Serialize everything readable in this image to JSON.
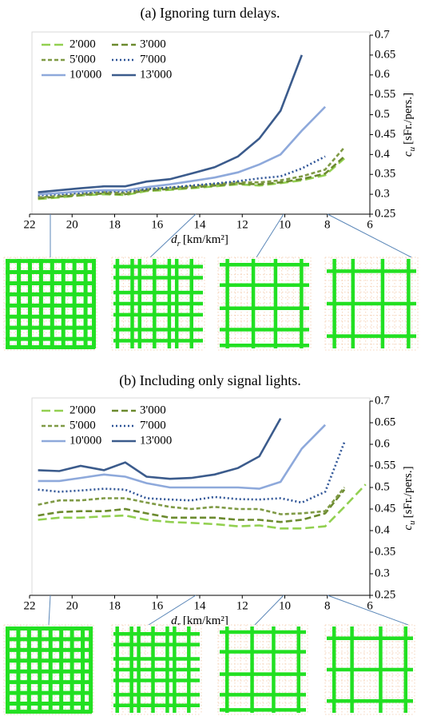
{
  "chart_data": [
    {
      "type": "line",
      "title": "(a) Ignoring turn delays.",
      "xlabel_symbol": "d",
      "xlabel_sub": "r",
      "xlabel_unit": "[km/km²]",
      "ylabel_symbol": "c",
      "ylabel_sub": "u",
      "ylabel_unit": "[sFr./pers.]",
      "xlim": [
        22,
        6
      ],
      "xticks": [
        22,
        20,
        18,
        16,
        14,
        12,
        10,
        8,
        6
      ],
      "ylim": [
        0.25,
        0.7
      ],
      "yticks": [
        0.25,
        0.3,
        0.35,
        0.4,
        0.45,
        0.5,
        0.55,
        0.6,
        0.65,
        0.7
      ],
      "x": [
        21.6,
        20.6,
        19.6,
        18.5,
        17.5,
        16.5,
        15.4,
        14.4,
        13.3,
        12.2,
        11.2,
        10.2,
        9.2,
        8.1,
        7.2
      ],
      "series": [
        {
          "name": "2'000",
          "color": "#92d050",
          "style": "longdash",
          "values": [
            0.288,
            0.292,
            0.297,
            0.3,
            0.298,
            0.308,
            0.311,
            0.315,
            0.32,
            0.325,
            0.322,
            0.328,
            0.335,
            0.348,
            0.39
          ]
        },
        {
          "name": "3'000",
          "color": "#6b8a2e",
          "style": "dashed",
          "values": [
            0.29,
            0.294,
            0.298,
            0.302,
            0.3,
            0.31,
            0.313,
            0.317,
            0.322,
            0.327,
            0.325,
            0.33,
            0.338,
            0.352,
            0.395
          ]
        },
        {
          "name": "5'000",
          "color": "#7f9a45",
          "style": "shortdash",
          "values": [
            0.292,
            0.296,
            0.3,
            0.305,
            0.303,
            0.312,
            0.316,
            0.32,
            0.325,
            0.33,
            0.33,
            0.335,
            0.345,
            0.362,
            0.418
          ]
        },
        {
          "name": "7'000",
          "color": "#2f5597",
          "style": "dotted",
          "values": [
            0.297,
            0.3,
            0.303,
            0.307,
            0.307,
            0.313,
            0.317,
            0.322,
            0.327,
            0.333,
            0.34,
            0.345,
            0.365,
            0.395,
            null
          ]
        },
        {
          "name": "10'000",
          "color": "#8ea9db",
          "style": "solid",
          "values": [
            0.3,
            0.303,
            0.307,
            0.31,
            0.31,
            0.318,
            0.325,
            0.333,
            0.342,
            0.355,
            0.375,
            0.4,
            0.46,
            0.52,
            null
          ]
        },
        {
          "name": "13'000",
          "color": "#3b5b8c",
          "style": "solid",
          "values": [
            0.305,
            0.31,
            0.315,
            0.32,
            0.32,
            0.332,
            0.338,
            0.352,
            0.368,
            0.395,
            0.44,
            0.51,
            0.65,
            null,
            null
          ]
        }
      ]
    },
    {
      "type": "line",
      "title": "(b) Including only signal lights.",
      "xlabel_symbol": "d",
      "xlabel_sub": "r",
      "xlabel_unit": "[km/km²]",
      "ylabel_symbol": "c",
      "ylabel_sub": "u",
      "ylabel_unit": "[sFr./pers.]",
      "xlim": [
        22,
        6
      ],
      "xticks": [
        22,
        20,
        18,
        16,
        14,
        12,
        10,
        8,
        6
      ],
      "ylim": [
        0.25,
        0.7
      ],
      "yticks": [
        0.25,
        0.3,
        0.35,
        0.4,
        0.45,
        0.5,
        0.55,
        0.6,
        0.65,
        0.7
      ],
      "x": [
        21.6,
        20.6,
        19.6,
        18.5,
        17.5,
        16.5,
        15.4,
        14.4,
        13.3,
        12.2,
        11.2,
        10.2,
        9.2,
        8.1,
        7.2,
        6.2
      ],
      "series": [
        {
          "name": "2'000",
          "color": "#92d050",
          "style": "longdash",
          "values": [
            0.425,
            0.43,
            0.43,
            0.433,
            0.435,
            0.425,
            0.42,
            0.418,
            0.415,
            0.41,
            0.412,
            0.405,
            0.405,
            0.41,
            0.455,
            0.507
          ]
        },
        {
          "name": "3'000",
          "color": "#6b8a2e",
          "style": "dashed",
          "values": [
            0.435,
            0.443,
            0.445,
            0.445,
            0.45,
            0.44,
            0.43,
            0.43,
            0.43,
            0.425,
            0.425,
            0.42,
            0.425,
            0.44,
            0.495,
            null
          ]
        },
        {
          "name": "5'000",
          "color": "#7f9a45",
          "style": "shortdash",
          "values": [
            0.46,
            0.47,
            0.47,
            0.475,
            0.475,
            0.465,
            0.455,
            0.45,
            0.455,
            0.45,
            0.45,
            0.438,
            0.44,
            0.445,
            0.5,
            null
          ]
        },
        {
          "name": "7'000",
          "color": "#2f5597",
          "style": "dotted",
          "values": [
            0.495,
            0.49,
            0.493,
            0.497,
            0.495,
            0.475,
            0.472,
            0.47,
            0.478,
            0.473,
            0.472,
            0.475,
            0.465,
            0.49,
            0.605,
            null
          ]
        },
        {
          "name": "10'000",
          "color": "#8ea9db",
          "style": "solid",
          "values": [
            0.515,
            0.515,
            0.522,
            0.53,
            0.525,
            0.51,
            0.5,
            0.5,
            0.5,
            0.5,
            0.497,
            0.513,
            0.59,
            0.645,
            null,
            null
          ]
        },
        {
          "name": "13'000",
          "color": "#3b5b8c",
          "style": "solid",
          "values": [
            0.54,
            0.538,
            0.55,
            0.54,
            0.558,
            0.525,
            0.52,
            0.522,
            0.53,
            0.545,
            0.572,
            0.66,
            null,
            null,
            null,
            null
          ]
        }
      ]
    }
  ]
}
